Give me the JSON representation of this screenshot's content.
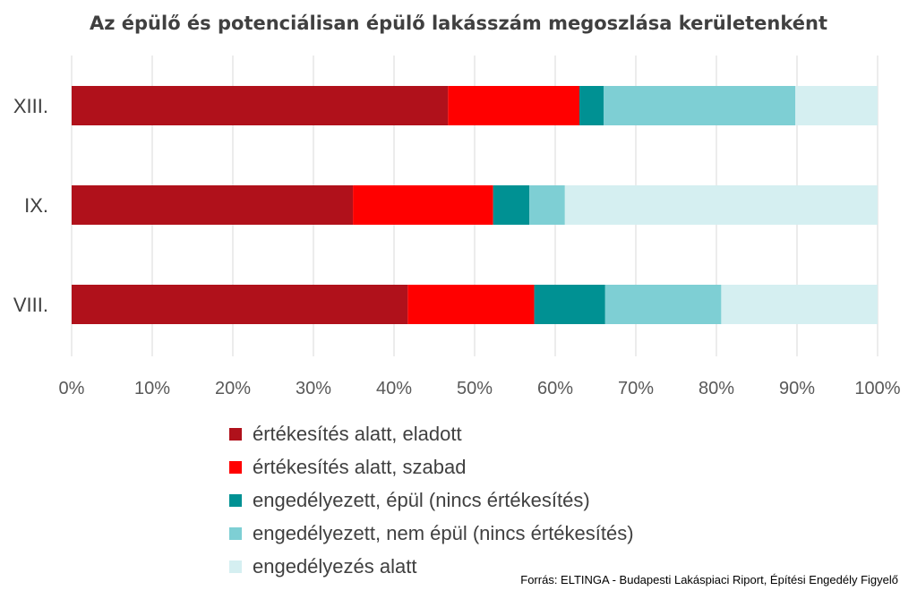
{
  "chart_data": {
    "type": "bar",
    "orientation": "horizontal",
    "stacked": "percent",
    "title": "Az épülő és potenciálisan épülő lakásszám megoszlása kerületenként",
    "categories": [
      "XIII.",
      "IX.",
      "VIII."
    ],
    "series": [
      {
        "name": "értékesítés alatt, eladott",
        "color": "#b0111b",
        "values": [
          46.7,
          34.9,
          41.7
        ]
      },
      {
        "name": "értékesítés alatt, szabad",
        "color": "#ff0000",
        "values": [
          16.3,
          17.4,
          15.7
        ]
      },
      {
        "name": "engedélyezett, épül (nincs értékesítés)",
        "color": "#009193",
        "values": [
          3.0,
          4.5,
          8.8
        ]
      },
      {
        "name": "engedélyezett, nem épül (nincs értékesítés)",
        "color": "#7ecfd4",
        "values": [
          23.8,
          4.4,
          14.4
        ]
      },
      {
        "name": "engedélyezés alatt",
        "color": "#d5eff1",
        "values": [
          10.2,
          38.8,
          19.4
        ]
      }
    ],
    "x_ticks": [
      "0%",
      "10%",
      "20%",
      "30%",
      "40%",
      "50%",
      "60%",
      "70%",
      "80%",
      "90%",
      "100%"
    ],
    "xlim": [
      0,
      100
    ],
    "grid": true,
    "legend_position": "bottom"
  },
  "source_note": "Forrás: ELTINGA - Budapesti Lakáspiaci Riport, Építési Engedély Figyelő"
}
